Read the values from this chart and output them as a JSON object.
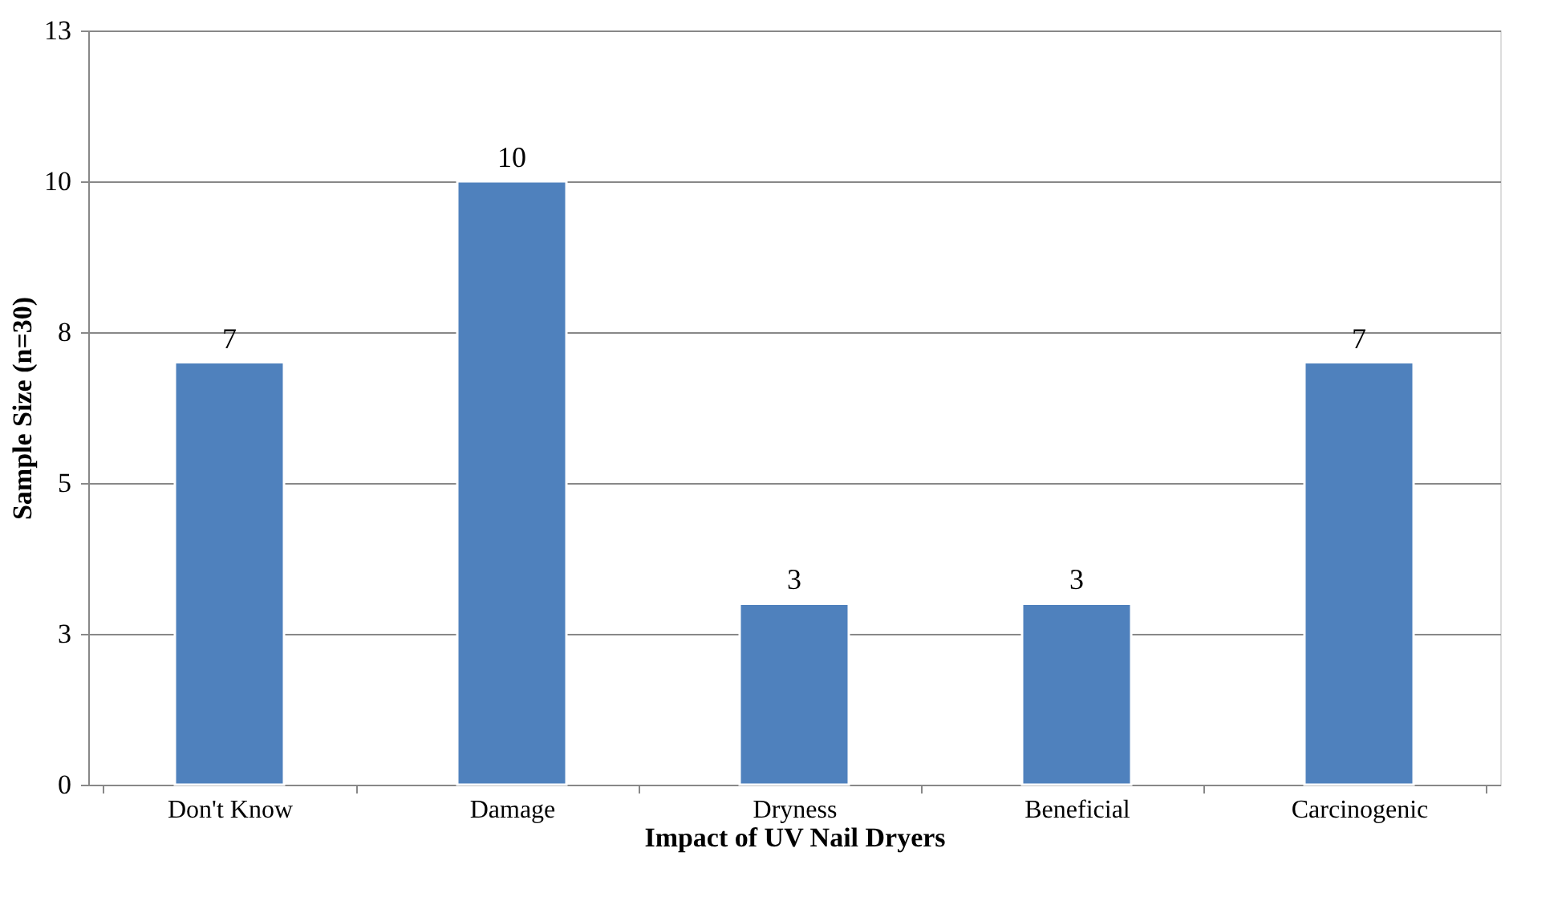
{
  "chart_data": {
    "type": "bar",
    "xlabel": "Impact of UV Nail Dryers",
    "ylabel": "Sample Size (n=30)",
    "categories": [
      "Don't Know",
      "Damage",
      "Dryness",
      "Beneficial",
      "Carcinogenic"
    ],
    "values": [
      7,
      10,
      3,
      3,
      7
    ],
    "color": "#4f81bd",
    "ylim": [
      0,
      12.5
    ],
    "yticks": [
      0,
      {
        "value": 2.5,
        "label": "3"
      },
      5,
      {
        "value": 7.5,
        "label": "8"
      },
      10,
      {
        "value": 12.5,
        "label": "13"
      }
    ],
    "grid": "y",
    "data_labels": true
  }
}
